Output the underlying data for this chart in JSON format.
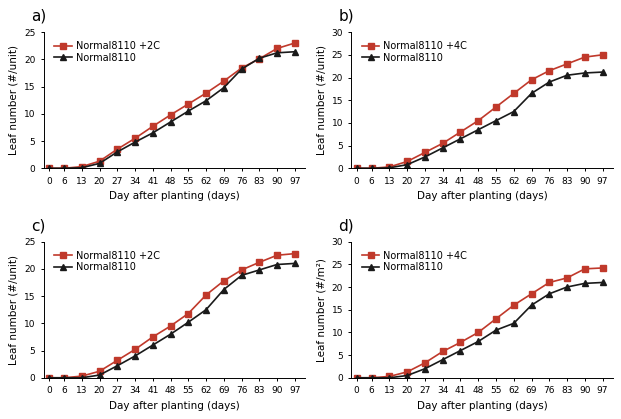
{
  "x_ticks": [
    0,
    6,
    13,
    20,
    27,
    34,
    41,
    48,
    55,
    62,
    69,
    76,
    83,
    90,
    97
  ],
  "panels": [
    {
      "label": "a)",
      "ylim": [
        0,
        25
      ],
      "yticks": [
        0,
        5,
        10,
        15,
        20,
        25
      ],
      "ylabel": "Leaf number (#/unit)",
      "legend1": "Normal8110 +2C",
      "legend2": "Normal8110",
      "red_data": [
        0,
        0,
        0.3,
        1.3,
        3.5,
        5.5,
        7.7,
        9.8,
        11.8,
        13.8,
        16.0,
        18.4,
        20.1,
        22.0,
        23.0,
        23.0
      ],
      "black_data": [
        0,
        0,
        0.1,
        0.9,
        3.0,
        4.8,
        6.5,
        8.5,
        10.5,
        12.4,
        14.8,
        18.2,
        20.2,
        21.2,
        21.4,
        21.2
      ]
    },
    {
      "label": "b)",
      "ylim": [
        0,
        30
      ],
      "yticks": [
        0,
        5,
        10,
        15,
        20,
        25,
        30
      ],
      "ylabel": "Leaf number (#/unit)",
      "legend1": "Normal8110 +4C",
      "legend2": "Normal8110",
      "red_data": [
        0,
        0,
        0.3,
        1.5,
        3.5,
        5.5,
        8.0,
        10.5,
        13.5,
        16.5,
        19.5,
        21.5,
        23.0,
        24.5,
        25.0,
        25.0
      ],
      "black_data": [
        0,
        0,
        0.1,
        0.8,
        2.5,
        4.5,
        6.5,
        8.5,
        10.5,
        12.5,
        16.5,
        19.0,
        20.5,
        21.0,
        21.2,
        21.2
      ]
    },
    {
      "label": "c)",
      "ylim": [
        0,
        25
      ],
      "yticks": [
        0,
        5,
        10,
        15,
        20,
        25
      ],
      "ylabel": "Leaf number (#/unit)",
      "legend1": "Normal8110 +2C",
      "legend2": "Normal8110",
      "red_data": [
        0,
        0,
        0.3,
        1.2,
        3.2,
        5.2,
        7.5,
        9.5,
        11.8,
        15.2,
        17.8,
        19.8,
        21.2,
        22.5,
        22.8,
        22.5
      ],
      "black_data": [
        0,
        0,
        0.0,
        0.5,
        2.2,
        4.0,
        6.0,
        8.0,
        10.2,
        12.5,
        16.2,
        18.8,
        19.8,
        20.8,
        21.0,
        21.0
      ]
    },
    {
      "label": "d)",
      "ylim": [
        0,
        30
      ],
      "yticks": [
        0,
        5,
        10,
        15,
        20,
        25,
        30
      ],
      "ylabel": "Leaf number (#/m²)",
      "legend1": "Normal8110 +4C",
      "legend2": "Normal8110",
      "red_data": [
        0,
        0,
        0.3,
        1.3,
        3.3,
        5.8,
        7.8,
        10.0,
        13.0,
        16.0,
        18.5,
        21.0,
        22.0,
        24.0,
        24.2,
        24.0
      ],
      "black_data": [
        0,
        0,
        0.0,
        0.5,
        2.0,
        4.0,
        6.0,
        8.0,
        10.5,
        12.0,
        16.0,
        18.5,
        20.0,
        20.8,
        21.0,
        21.0
      ]
    }
  ],
  "xlabel": "Day after planting (days)",
  "red_color": "#C0392B",
  "black_color": "#1a1a1a",
  "bg_color": "#ffffff",
  "fontsize_label": 7.5,
  "fontsize_tick": 6.5,
  "fontsize_legend": 7,
  "fontsize_panel_label": 11
}
